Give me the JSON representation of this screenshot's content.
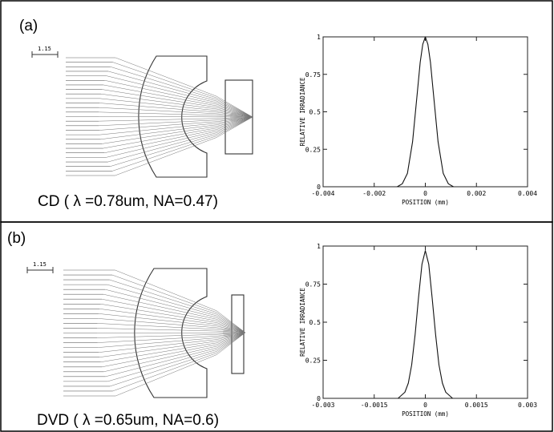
{
  "panels": [
    {
      "id": "a",
      "tag": "(a)",
      "caption": "CD ( λ =0.78um, NA=0.47)",
      "scale_bar": "1.15",
      "chart_data": {
        "type": "line",
        "title": "",
        "xlabel": "POSITION (mm)",
        "ylabel": "RELATIVE IRRADIANCE",
        "xlim": [
          -0.004,
          0.004
        ],
        "ylim": [
          0,
          1
        ],
        "xticks": [
          -0.004,
          -0.002,
          0,
          0.002,
          0.004
        ],
        "xtick_labels": [
          "-0.004",
          "-0.002",
          "0",
          "0.002",
          "0.004"
        ],
        "yticks": [
          0,
          0.25,
          0.5,
          0.75,
          1
        ],
        "ytick_labels": [
          "0",
          "0.25",
          "0.5",
          "0.75",
          "1"
        ],
        "grid": false,
        "series": [
          {
            "x": [
              -0.0011,
              -0.0009,
              -0.0007,
              -0.0005,
              -0.0003,
              -0.0002,
              -0.0001,
              0,
              0.0001,
              0.0002,
              0.0003,
              0.0005,
              0.0007,
              0.0009,
              0.0011
            ],
            "values": [
              0,
              0.02,
              0.09,
              0.3,
              0.65,
              0.83,
              0.95,
              1.0,
              0.95,
              0.83,
              0.65,
              0.3,
              0.09,
              0.02,
              0
            ]
          }
        ]
      }
    },
    {
      "id": "b",
      "tag": "(b)",
      "caption": "DVD ( λ =0.65um, NA=0.6)",
      "scale_bar": "1.15",
      "chart_data": {
        "type": "line",
        "title": "",
        "xlabel": "POSITION (mm)",
        "ylabel": "RELATIVE IRRADIANCE",
        "xlim": [
          -0.003,
          0.003
        ],
        "ylim": [
          0,
          1
        ],
        "xticks": [
          -0.003,
          -0.0015,
          0,
          0.0015,
          0.003
        ],
        "xtick_labels": [
          "-0.003",
          "-0.0015",
          "0",
          "0.0015",
          "0.003"
        ],
        "yticks": [
          0,
          0.25,
          0.5,
          0.75,
          1
        ],
        "ytick_labels": [
          "0",
          "0.25",
          "0.5",
          "0.75",
          "1"
        ],
        "grid": false,
        "series": [
          {
            "x": [
              -0.0008,
              -0.0006,
              -0.0005,
              -0.0004,
              -0.0003,
              -0.0002,
              -0.0001,
              0,
              0.0001,
              0.0002,
              0.0003,
              0.0004,
              0.0005,
              0.0006,
              0.0008
            ],
            "values": [
              0,
              0.04,
              0.1,
              0.22,
              0.42,
              0.66,
              0.88,
              0.97,
              0.88,
              0.66,
              0.42,
              0.22,
              0.1,
              0.04,
              0
            ]
          }
        ]
      }
    }
  ]
}
